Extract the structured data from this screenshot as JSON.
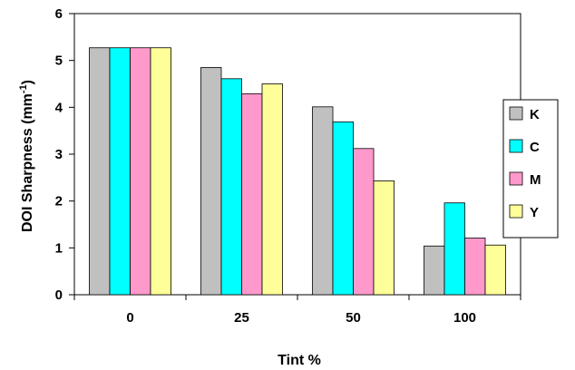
{
  "chart_data": {
    "type": "bar",
    "xlabel": "Tint %",
    "ylabel": "DOI Sharpness (mm",
    "ylabel_sup": "-1",
    "ylabel_end": ")",
    "ylim": [
      0,
      6
    ],
    "yticks": [
      0,
      1,
      2,
      3,
      4,
      5,
      6
    ],
    "grid": false,
    "legend_position": "right",
    "categories": [
      "0",
      "25",
      "50",
      "100"
    ],
    "series": [
      {
        "name": "K",
        "color": "#c0c0c0",
        "values": [
          5.27,
          4.85,
          4.01,
          1.04
        ]
      },
      {
        "name": "C",
        "color": "#00ffff",
        "values": [
          5.27,
          4.61,
          3.69,
          1.96
        ]
      },
      {
        "name": "M",
        "color": "#ff99cc",
        "values": [
          5.27,
          4.29,
          3.12,
          1.21
        ]
      },
      {
        "name": "Y",
        "color": "#ffff99",
        "values": [
          5.27,
          4.5,
          2.43,
          1.06
        ]
      }
    ]
  }
}
